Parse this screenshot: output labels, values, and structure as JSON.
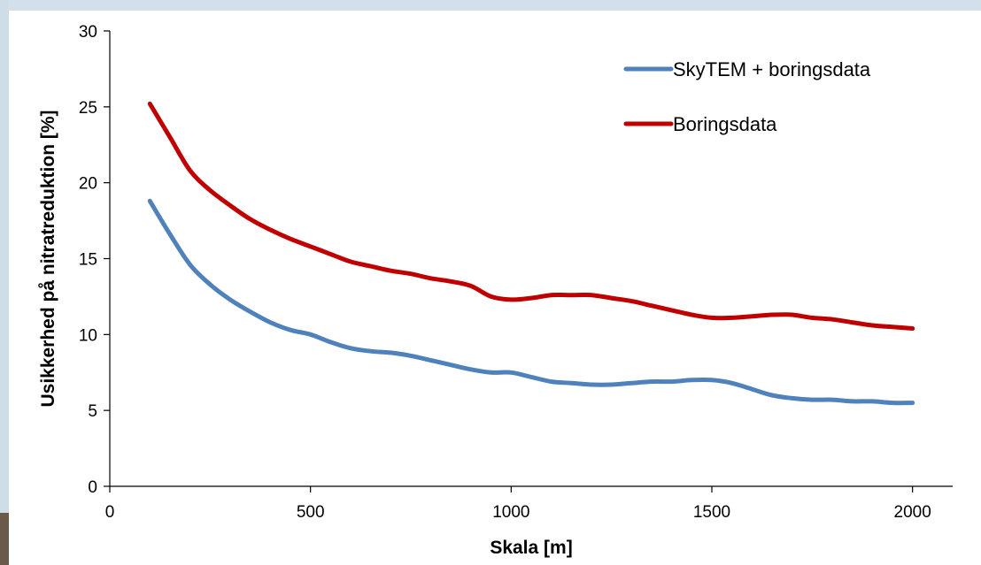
{
  "chart_data": {
    "type": "line",
    "xlabel": "Skala [m]",
    "ylabel": "Usikkerhed på nitratreduktion  [%]",
    "xlim": [
      0,
      2100
    ],
    "ylim": [
      0,
      30
    ],
    "xticks": [
      0,
      500,
      1000,
      1500,
      2000
    ],
    "yticks": [
      0,
      5,
      10,
      15,
      20,
      25,
      30
    ],
    "grid": false,
    "legend_position": "top-right",
    "series": [
      {
        "name": "SkyTEM + boringsdata",
        "color": "#4f81bd",
        "x": [
          100,
          150,
          200,
          250,
          300,
          350,
          400,
          450,
          500,
          550,
          600,
          650,
          700,
          750,
          800,
          850,
          900,
          950,
          1000,
          1050,
          1100,
          1150,
          1200,
          1250,
          1300,
          1350,
          1400,
          1450,
          1500,
          1550,
          1600,
          1650,
          1700,
          1750,
          1800,
          1850,
          1900,
          1950,
          2000
        ],
        "y": [
          18.8,
          16.6,
          14.6,
          13.3,
          12.3,
          11.5,
          10.8,
          10.3,
          10.0,
          9.5,
          9.1,
          8.9,
          8.8,
          8.6,
          8.3,
          8.0,
          7.7,
          7.5,
          7.5,
          7.2,
          6.9,
          6.8,
          6.7,
          6.7,
          6.8,
          6.9,
          6.9,
          7.0,
          7.0,
          6.8,
          6.4,
          6.0,
          5.8,
          5.7,
          5.7,
          5.6,
          5.6,
          5.5,
          5.5
        ]
      },
      {
        "name": "Boringsdata",
        "color": "#c00000",
        "x": [
          100,
          150,
          200,
          250,
          300,
          350,
          400,
          450,
          500,
          550,
          600,
          650,
          700,
          750,
          800,
          850,
          900,
          950,
          1000,
          1050,
          1100,
          1150,
          1200,
          1250,
          1300,
          1350,
          1400,
          1450,
          1500,
          1550,
          1600,
          1650,
          1700,
          1750,
          1800,
          1850,
          1900,
          1950,
          2000
        ],
        "y": [
          25.2,
          23.0,
          20.8,
          19.5,
          18.5,
          17.6,
          16.9,
          16.3,
          15.8,
          15.3,
          14.8,
          14.5,
          14.2,
          14.0,
          13.7,
          13.5,
          13.2,
          12.5,
          12.3,
          12.4,
          12.6,
          12.6,
          12.6,
          12.4,
          12.2,
          11.9,
          11.6,
          11.3,
          11.1,
          11.1,
          11.2,
          11.3,
          11.3,
          11.1,
          11.0,
          10.8,
          10.6,
          10.5,
          10.4
        ]
      }
    ]
  }
}
